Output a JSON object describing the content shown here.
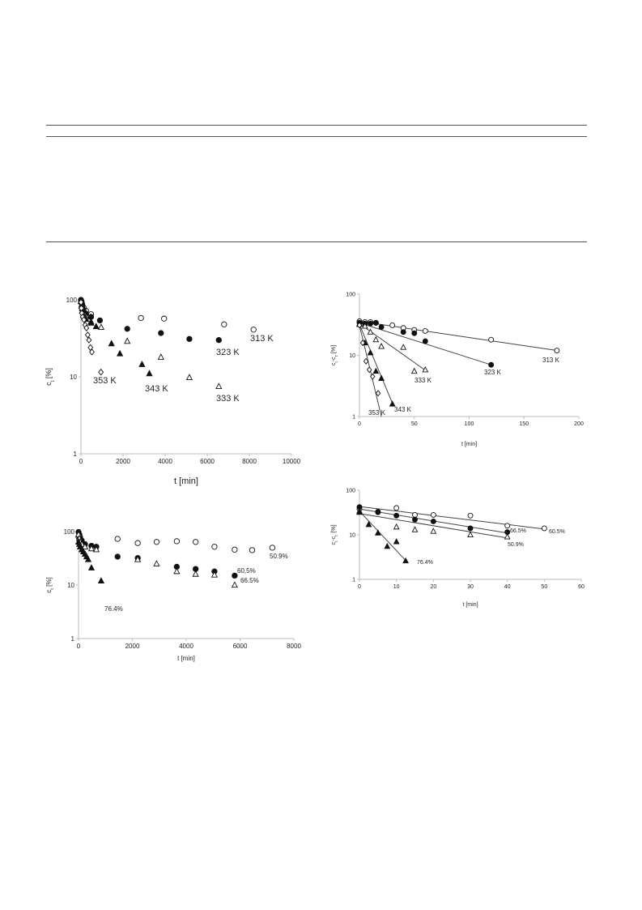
{
  "colors": {
    "marker": "#111111",
    "axis": "#bcbcbc",
    "rule": "#555555"
  },
  "chart_data": [
    {
      "type": "scatter",
      "xlabel": "t [min]",
      "ylabel": "c_t [%]",
      "xlim": [
        0,
        10000
      ],
      "ylim": [
        1,
        100
      ],
      "yscale": "log",
      "xticks": [
        0,
        2000,
        4000,
        6000,
        8000,
        10000
      ],
      "yticks": [
        1,
        10,
        100
      ],
      "grid": false,
      "series": [
        {
          "name": "313 K",
          "marker": "open-circle",
          "x": [
            0,
            30,
            60,
            120,
            240,
            480,
            2850,
            3950,
            6800,
            8200
          ],
          "y": [
            100,
            95,
            88,
            80,
            72,
            65,
            58,
            57,
            48,
            41
          ]
        },
        {
          "name": "323 K",
          "marker": "filled-circle",
          "x": [
            0,
            30,
            60,
            120,
            240,
            480,
            900,
            2200,
            3800,
            5150,
            6550
          ],
          "y": [
            98,
            90,
            82,
            74,
            66,
            60,
            54,
            42,
            37,
            31,
            30
          ]
        },
        {
          "name": "333 K",
          "marker": "open-triangle",
          "x": [
            0,
            30,
            60,
            120,
            240,
            480,
            960,
            2200,
            3800,
            5150,
            6550
          ],
          "y": [
            96,
            86,
            77,
            68,
            60,
            52,
            44,
            29,
            18,
            9.8,
            7.5
          ]
        },
        {
          "name": "343 K",
          "marker": "filled-triangle",
          "x": [
            0,
            30,
            60,
            120,
            240,
            480,
            720,
            1450,
            1850,
            2900,
            3250
          ],
          "y": [
            95,
            82,
            72,
            63,
            56,
            50,
            45,
            27,
            20,
            14.5,
            11
          ]
        },
        {
          "name": "353 K",
          "marker": "open-diamond",
          "x": [
            0,
            20,
            40,
            80,
            140,
            200,
            260,
            320,
            380,
            450,
            520,
            950
          ],
          "y": [
            93,
            78,
            67,
            60,
            55,
            47,
            43,
            35,
            30,
            24,
            21,
            11.5
          ]
        }
      ],
      "annotations": [
        "313 K",
        "323 K",
        "333 K",
        "343 K",
        "353 K"
      ]
    },
    {
      "type": "scatter",
      "xlabel": "t [min]",
      "ylabel": "c_t-c_t' [%]",
      "xlim": [
        0,
        200
      ],
      "ylim": [
        1,
        100
      ],
      "yscale": "log",
      "xticks": [
        0,
        50,
        100,
        150,
        200
      ],
      "yticks": [
        1,
        10,
        100
      ],
      "grid": false,
      "series": [
        {
          "name": "313 K",
          "marker": "open-circle",
          "x": [
            0,
            5,
            10,
            15,
            30,
            40,
            50,
            60,
            120,
            180
          ],
          "y": [
            36,
            35,
            35,
            34,
            31,
            28,
            26,
            25,
            18,
            12
          ],
          "fit": {
            "x": [
              0,
              180
            ],
            "y": [
              36,
              12
            ]
          }
        },
        {
          "name": "323 K",
          "marker": "filled-circle",
          "x": [
            0,
            5,
            10,
            15,
            20,
            40,
            50,
            60,
            120
          ],
          "y": [
            34,
            33,
            33,
            34,
            29,
            24,
            23,
            17,
            7
          ],
          "fit": {
            "x": [
              0,
              120
            ],
            "y": [
              34,
              7
            ]
          }
        },
        {
          "name": "333 K",
          "marker": "open-triangle",
          "x": [
            0,
            5,
            10,
            15,
            20,
            40,
            50,
            60
          ],
          "y": [
            33,
            30,
            24,
            18,
            14,
            13.5,
            5.5,
            5.8
          ],
          "fit": {
            "x": [
              0,
              60
            ],
            "y": [
              33,
              5.7
            ]
          }
        },
        {
          "name": "343 K",
          "marker": "filled-triangle",
          "x": [
            0,
            5,
            10,
            15,
            20,
            30
          ],
          "y": [
            32,
            16,
            11,
            5.5,
            4.2,
            1.6
          ],
          "fit": {
            "x": [
              0,
              31
            ],
            "y": [
              32,
              1.5
            ]
          }
        },
        {
          "name": "353 K",
          "marker": "open-diamond",
          "x": [
            0,
            3,
            6,
            9,
            12,
            17
          ],
          "y": [
            31,
            16,
            8,
            5.8,
            4.5,
            2.4
          ],
          "fit": {
            "x": [
              0,
              20
            ],
            "y": [
              31,
              1.0
            ]
          }
        }
      ],
      "annotations": [
        "313 K",
        "323 K",
        "333 K",
        "343 K",
        "353 K"
      ]
    },
    {
      "type": "scatter",
      "xlabel": "t [min]",
      "ylabel": "c_t [%]",
      "xlim": [
        0,
        8000
      ],
      "ylim": [
        1,
        100
      ],
      "yscale": "log",
      "xticks": [
        0,
        2000,
        4000,
        6000,
        8000
      ],
      "yticks": [
        1,
        10,
        100
      ],
      "grid": false,
      "series": [
        {
          "name": "50.9%",
          "marker": "open-circle",
          "x": [
            0,
            30,
            60,
            120,
            240,
            480,
            1450,
            2200,
            2900,
            3650,
            4350,
            5050,
            5800,
            6450,
            7200
          ],
          "y": [
            80,
            72,
            66,
            62,
            58,
            54,
            73,
            61,
            64,
            66,
            64,
            52,
            46,
            45,
            50
          ]
        },
        {
          "name": "66.5%",
          "marker": "filled-circle",
          "x": [
            0,
            30,
            60,
            120,
            240,
            480,
            660,
            1450,
            2200,
            3650,
            4350,
            5050,
            5800
          ],
          "y": [
            98,
            88,
            78,
            68,
            58,
            54,
            52,
            34,
            32,
            22,
            20,
            18,
            15
          ]
        },
        {
          "name": "60,5%",
          "marker": "open-triangle",
          "x": [
            0,
            30,
            60,
            120,
            240,
            480,
            660,
            2200,
            2900,
            3650,
            4350,
            5050,
            5800
          ],
          "y": [
            88,
            74,
            64,
            58,
            52,
            48,
            46,
            30,
            25,
            18,
            16,
            15.5,
            10
          ]
        },
        {
          "name": "76.4%",
          "marker": "filled-triangle",
          "x": [
            0,
            30,
            60,
            120,
            180,
            240,
            300,
            360,
            480,
            840
          ],
          "y": [
            64,
            58,
            52,
            46,
            42,
            38,
            34,
            30,
            21,
            12
          ]
        }
      ],
      "annotations": [
        "50.9%",
        "60,5%",
        "66.5%",
        "76.4%"
      ]
    },
    {
      "type": "scatter",
      "xlabel": "t [min]",
      "ylabel": "c_t-c_t' [%]",
      "xlim": [
        0,
        60
      ],
      "ylim": [
        1,
        100
      ],
      "yscale": "log",
      "xticks": [
        0,
        10,
        20,
        30,
        40,
        50,
        60
      ],
      "yticks": [
        1,
        10,
        100
      ],
      "grid": false,
      "series": [
        {
          "name": "60.5%",
          "marker": "open-circle",
          "x": [
            0,
            5,
            10,
            15,
            20,
            30,
            40,
            50
          ],
          "y": [
            38,
            33,
            40,
            28,
            28,
            27,
            16,
            14
          ],
          "fit": {
            "x": [
              0,
              50
            ],
            "y": [
              43,
              13.5
            ]
          }
        },
        {
          "name": "66.5%",
          "marker": "filled-circle",
          "x": [
            0,
            5,
            10,
            15,
            20,
            30,
            40
          ],
          "y": [
            42,
            32,
            27,
            22,
            20,
            14,
            11.5
          ],
          "fit": {
            "x": [
              0,
              40
            ],
            "y": [
              38,
              11
            ]
          }
        },
        {
          "name": "50.9%",
          "marker": "open-triangle",
          "x": [
            0,
            10,
            15,
            20,
            30,
            40
          ],
          "y": [
            34,
            15,
            13,
            12,
            10,
            9
          ],
          "fit": {
            "x": [
              0,
              40
            ],
            "y": [
              30,
              8.5
            ]
          }
        },
        {
          "name": "76.4%",
          "marker": "filled-triangle",
          "x": [
            0,
            2.5,
            5,
            7.5,
            10,
            12.5
          ],
          "y": [
            32,
            17,
            11,
            5.5,
            7,
            2.6
          ],
          "fit": {
            "x": [
              0,
              13
            ],
            "y": [
              34,
              2.4
            ]
          }
        }
      ],
      "annotations": [
        "60.5%",
        "66.5%",
        "50.9%",
        "76.4%"
      ]
    }
  ]
}
